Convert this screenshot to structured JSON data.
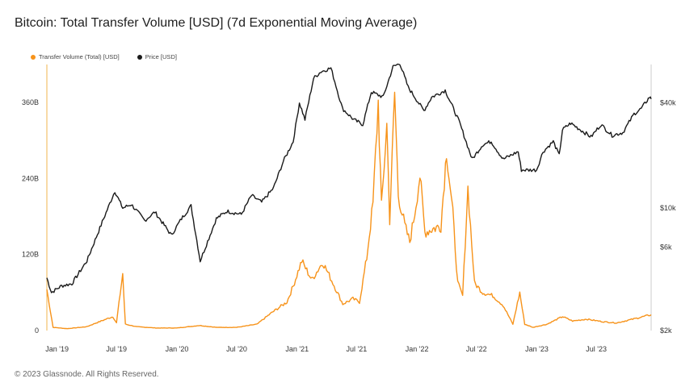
{
  "title": "Bitcoin: Total Transfer Volume [USD] (7d Exponential Moving Average)",
  "footer": "© 2023 Glassnode. All Rights Reserved.",
  "colors": {
    "volume": "#f7931a",
    "price": "#1a1a1a",
    "axis_left": "#f2b44f",
    "axis_right": "#cccccc"
  },
  "chart_data": {
    "type": "line",
    "title": "Bitcoin: Total Transfer Volume [USD] (7d Exponential Moving Average)",
    "x_range": [
      "2018-12-01",
      "2023-12-15"
    ],
    "x_ticks": [
      {
        "date": "2019-01-01",
        "label": "Jan '19"
      },
      {
        "date": "2019-07-01",
        "label": "Jul '19"
      },
      {
        "date": "2020-01-01",
        "label": "Jan '20"
      },
      {
        "date": "2020-07-01",
        "label": "Jul '20"
      },
      {
        "date": "2021-01-01",
        "label": "Jan '21"
      },
      {
        "date": "2021-07-01",
        "label": "Jul '21"
      },
      {
        "date": "2022-01-01",
        "label": "Jan '22"
      },
      {
        "date": "2022-07-01",
        "label": "Jul '22"
      },
      {
        "date": "2023-01-01",
        "label": "Jan '23"
      },
      {
        "date": "2023-07-01",
        "label": "Jul '23"
      }
    ],
    "left_axis": {
      "range_billions": [
        0,
        420
      ],
      "ticks": [
        {
          "value": 0,
          "label": "0"
        },
        {
          "value": 120,
          "label": "120B"
        },
        {
          "value": 240,
          "label": "240B"
        },
        {
          "value": 360,
          "label": "360B"
        }
      ]
    },
    "right_axis": {
      "scale": "log",
      "range_usd": [
        2000,
        66000
      ],
      "ticks": [
        {
          "value": 2000,
          "label": "$2k"
        },
        {
          "value": 6000,
          "label": "$6k"
        },
        {
          "value": 10000,
          "label": "$10k"
        },
        {
          "value": 40000,
          "label": "$40k"
        }
      ]
    },
    "legend_position": "top-left",
    "series": [
      {
        "name": "Transfer Volume (Total) [USD]",
        "axis": "left",
        "unit": "billion USD",
        "points": [
          [
            "2018-12-01",
            65
          ],
          [
            "2018-12-20",
            5
          ],
          [
            "2019-02-01",
            3
          ],
          [
            "2019-04-01",
            6
          ],
          [
            "2019-05-15",
            15
          ],
          [
            "2019-06-20",
            22
          ],
          [
            "2019-07-01",
            12
          ],
          [
            "2019-07-20",
            90
          ],
          [
            "2019-07-28",
            10
          ],
          [
            "2019-09-01",
            6
          ],
          [
            "2019-11-01",
            4
          ],
          [
            "2020-01-01",
            4
          ],
          [
            "2020-03-10",
            8
          ],
          [
            "2020-05-01",
            5
          ],
          [
            "2020-07-01",
            5
          ],
          [
            "2020-09-01",
            10
          ],
          [
            "2020-10-15",
            28
          ],
          [
            "2020-12-01",
            45
          ],
          [
            "2020-12-20",
            70
          ],
          [
            "2021-01-15",
            110
          ],
          [
            "2021-02-15",
            80
          ],
          [
            "2021-03-20",
            108
          ],
          [
            "2021-04-20",
            75
          ],
          [
            "2021-05-20",
            42
          ],
          [
            "2021-06-20",
            50
          ],
          [
            "2021-07-10",
            45
          ],
          [
            "2021-08-01",
            115
          ],
          [
            "2021-08-20",
            200
          ],
          [
            "2021-09-05",
            360
          ],
          [
            "2021-09-15",
            195
          ],
          [
            "2021-10-01",
            325
          ],
          [
            "2021-10-10",
            175
          ],
          [
            "2021-10-25",
            375
          ],
          [
            "2021-11-05",
            215
          ],
          [
            "2021-11-25",
            165
          ],
          [
            "2021-12-10",
            140
          ],
          [
            "2021-12-25",
            185
          ],
          [
            "2022-01-10",
            245
          ],
          [
            "2022-01-25",
            155
          ],
          [
            "2022-02-15",
            160
          ],
          [
            "2022-03-15",
            165
          ],
          [
            "2022-04-01",
            285
          ],
          [
            "2022-04-20",
            185
          ],
          [
            "2022-05-05",
            75
          ],
          [
            "2022-05-20",
            55
          ],
          [
            "2022-06-05",
            225
          ],
          [
            "2022-06-25",
            75
          ],
          [
            "2022-07-20",
            60
          ],
          [
            "2022-08-20",
            55
          ],
          [
            "2022-09-20",
            40
          ],
          [
            "2022-10-20",
            10
          ],
          [
            "2022-11-10",
            60
          ],
          [
            "2022-11-25",
            10
          ],
          [
            "2022-12-20",
            5
          ],
          [
            "2023-02-01",
            10
          ],
          [
            "2023-03-20",
            22
          ],
          [
            "2023-04-20",
            15
          ],
          [
            "2023-06-01",
            18
          ],
          [
            "2023-07-20",
            14
          ],
          [
            "2023-09-01",
            12
          ],
          [
            "2023-10-20",
            18
          ],
          [
            "2023-12-15",
            25
          ]
        ]
      },
      {
        "name": "Price [USD]",
        "axis": "right",
        "unit": "USD",
        "points": [
          [
            "2018-12-01",
            4000
          ],
          [
            "2018-12-15",
            3300
          ],
          [
            "2019-01-15",
            3600
          ],
          [
            "2019-02-15",
            3700
          ],
          [
            "2019-04-02",
            5000
          ],
          [
            "2019-05-15",
            8000
          ],
          [
            "2019-06-26",
            12500
          ],
          [
            "2019-07-20",
            10000
          ],
          [
            "2019-08-15",
            10500
          ],
          [
            "2019-09-25",
            8500
          ],
          [
            "2019-10-26",
            9500
          ],
          [
            "2019-12-15",
            7000
          ],
          [
            "2020-01-15",
            8700
          ],
          [
            "2020-02-13",
            10300
          ],
          [
            "2020-03-12",
            5000
          ],
          [
            "2020-04-30",
            8700
          ],
          [
            "2020-06-01",
            9600
          ],
          [
            "2020-07-15",
            9200
          ],
          [
            "2020-08-15",
            11800
          ],
          [
            "2020-09-15",
            10800
          ],
          [
            "2020-10-21",
            13000
          ],
          [
            "2020-11-20",
            18500
          ],
          [
            "2020-12-20",
            24000
          ],
          [
            "2021-01-08",
            40000
          ],
          [
            "2021-01-25",
            32000
          ],
          [
            "2021-02-20",
            55000
          ],
          [
            "2021-03-14",
            60000
          ],
          [
            "2021-04-14",
            63000
          ],
          [
            "2021-05-19",
            37000
          ],
          [
            "2021-06-22",
            32000
          ],
          [
            "2021-07-20",
            30000
          ],
          [
            "2021-08-15",
            46000
          ],
          [
            "2021-09-20",
            43000
          ],
          [
            "2021-10-20",
            64000
          ],
          [
            "2021-11-10",
            67000
          ],
          [
            "2021-12-05",
            49000
          ],
          [
            "2022-01-22",
            36000
          ],
          [
            "2022-02-15",
            43000
          ],
          [
            "2022-03-28",
            47000
          ],
          [
            "2022-05-10",
            31000
          ],
          [
            "2022-06-18",
            19000
          ],
          [
            "2022-07-20",
            23000
          ],
          [
            "2022-08-15",
            24000
          ],
          [
            "2022-09-20",
            19000
          ],
          [
            "2022-11-05",
            21000
          ],
          [
            "2022-11-15",
            16500
          ],
          [
            "2022-12-31",
            16500
          ],
          [
            "2023-01-20",
            21000
          ],
          [
            "2023-02-20",
            24000
          ],
          [
            "2023-03-10",
            20000
          ],
          [
            "2023-03-20",
            28000
          ],
          [
            "2023-04-14",
            30500
          ],
          [
            "2023-06-15",
            25500
          ],
          [
            "2023-07-15",
            30000
          ],
          [
            "2023-08-18",
            26000
          ],
          [
            "2023-09-20",
            27000
          ],
          [
            "2023-10-24",
            34500
          ],
          [
            "2023-11-15",
            37000
          ],
          [
            "2023-12-10",
            43000
          ],
          [
            "2023-12-15",
            42000
          ]
        ]
      }
    ]
  }
}
